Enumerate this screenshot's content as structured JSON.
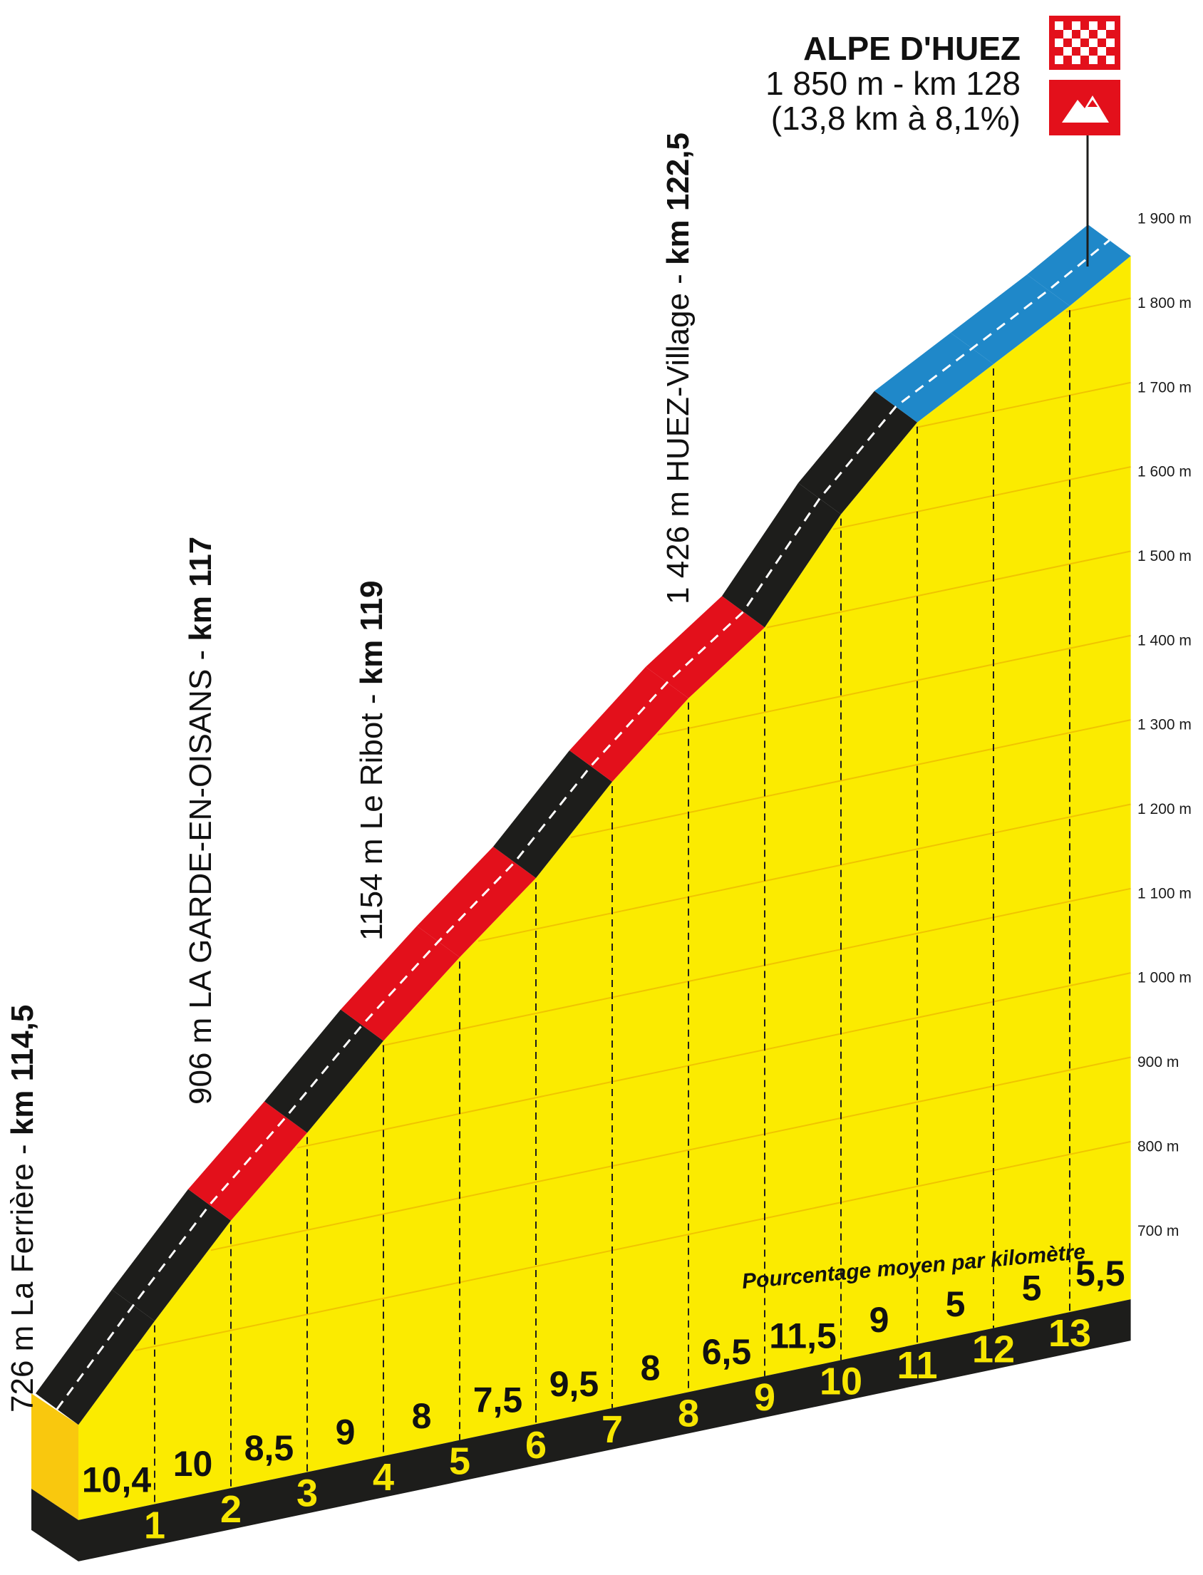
{
  "chart_data": {
    "type": "area",
    "title": "",
    "xlabel": "",
    "ylabel": "",
    "y_unit": "m",
    "ylim": [
      700,
      1900
    ],
    "y_ticks": [
      "1 900 m",
      "1 800 m",
      "1 700 m",
      "1 600 m",
      "1 500 m",
      "1 400 m",
      "1 300 m",
      "1 200 m",
      "1 100 m",
      "1 000 m",
      "900 m",
      "800 m",
      "700 m"
    ],
    "km_labels": [
      "1",
      "2",
      "3",
      "4",
      "5",
      "6",
      "7",
      "8",
      "9",
      "10",
      "11",
      "12",
      "13"
    ],
    "segments": [
      {
        "km_from": 0,
        "km_to": 1,
        "avg_pct": "10,4",
        "color": "black"
      },
      {
        "km_from": 1,
        "km_to": 2,
        "avg_pct": "10",
        "color": "black"
      },
      {
        "km_from": 2,
        "km_to": 3,
        "avg_pct": "8,5",
        "color": "red"
      },
      {
        "km_from": 3,
        "km_to": 4,
        "avg_pct": "9",
        "color": "black"
      },
      {
        "km_from": 4,
        "km_to": 5,
        "avg_pct": "8",
        "color": "red"
      },
      {
        "km_from": 5,
        "km_to": 6,
        "avg_pct": "7,5",
        "color": "red"
      },
      {
        "km_from": 6,
        "km_to": 7,
        "avg_pct": "9,5",
        "color": "black"
      },
      {
        "km_from": 7,
        "km_to": 8,
        "avg_pct": "8",
        "color": "red"
      },
      {
        "km_from": 8,
        "km_to": 9,
        "avg_pct": "6,5",
        "color": "red"
      },
      {
        "km_from": 9,
        "km_to": 10,
        "avg_pct": "11,5",
        "color": "black"
      },
      {
        "km_from": 10,
        "km_to": 11,
        "avg_pct": "9",
        "color": "black"
      },
      {
        "km_from": 11,
        "km_to": 12,
        "avg_pct": "5",
        "color": "blue"
      },
      {
        "km_from": 12,
        "km_to": 13,
        "avg_pct": "5",
        "color": "blue"
      },
      {
        "km_from": 13,
        "km_to": 13.8,
        "avg_pct": "5,5",
        "color": "blue"
      }
    ],
    "locations": [
      {
        "km": 0,
        "plain": "726 m La Ferrière - ",
        "bold": "km 114,5"
      },
      {
        "km": 2.5,
        "plain": "906 m  LA GARDE-EN-OISANS - ",
        "bold": "km 117"
      },
      {
        "km": 4.5,
        "plain": "1154 m Le Ribot - ",
        "bold": "km 119"
      },
      {
        "km": 8.0,
        "plain": "1 426 m HUEZ-Village - ",
        "bold": "km 122,5"
      }
    ],
    "finish": {
      "name": "ALPE D'HUEZ",
      "line1": "1 850 m - km 128",
      "line2": "(13,8 km à 8,1%)"
    },
    "note": "Pourcentage moyen par kilomètre",
    "colors": {
      "fill": "#fbeb00",
      "black": "#1d1d1b",
      "red": "#e3101b",
      "blue": "#1f88c9",
      "start_block": "#f9c80e",
      "flag_red": "#e3101b",
      "grid": "#f0c400"
    }
  }
}
